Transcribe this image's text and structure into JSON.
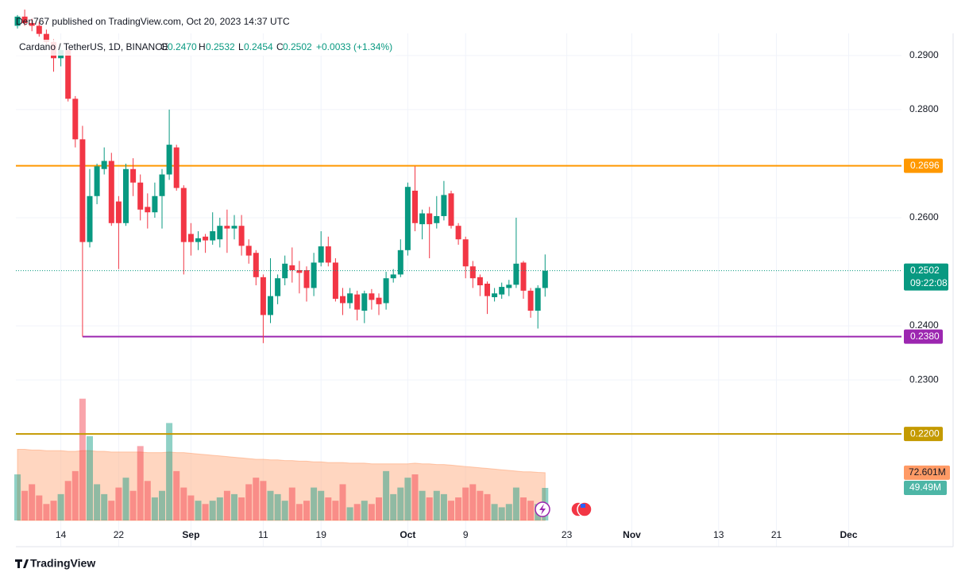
{
  "header": {
    "publisher": "Den767 published on TradingView.com, Oct 20, 2023 14:37 UTC",
    "symbol": "Cardano / TetherUS, 1D, BINANCE",
    "o_key": "O",
    "o": "0.2470",
    "h_key": "H",
    "h": "0.2532",
    "l_key": "L",
    "l": "0.2454",
    "c_key": "C",
    "c": "0.2502",
    "change": "+0.0033 (+1.34%)"
  },
  "footer": {
    "brand": "TradingView"
  },
  "chart_data": {
    "type": "candlestick",
    "x": [
      "2023-08-08",
      "2023-08-09",
      "2023-08-10",
      "2023-08-11",
      "2023-08-12",
      "2023-08-13",
      "2023-08-14",
      "2023-08-15",
      "2023-08-16",
      "2023-08-17",
      "2023-08-18",
      "2023-08-19",
      "2023-08-20",
      "2023-08-21",
      "2023-08-22",
      "2023-08-23",
      "2023-08-24",
      "2023-08-25",
      "2023-08-26",
      "2023-08-27",
      "2023-08-28",
      "2023-08-29",
      "2023-08-30",
      "2023-08-31",
      "2023-09-01",
      "2023-09-02",
      "2023-09-03",
      "2023-09-04",
      "2023-09-05",
      "2023-09-06",
      "2023-09-07",
      "2023-09-08",
      "2023-09-09",
      "2023-09-10",
      "2023-09-11",
      "2023-09-12",
      "2023-09-13",
      "2023-09-14",
      "2023-09-15",
      "2023-09-16",
      "2023-09-17",
      "2023-09-18",
      "2023-09-19",
      "2023-09-20",
      "2023-09-21",
      "2023-09-22",
      "2023-09-23",
      "2023-09-24",
      "2023-09-25",
      "2023-09-26",
      "2023-09-27",
      "2023-09-28",
      "2023-09-29",
      "2023-09-30",
      "2023-10-01",
      "2023-10-02",
      "2023-10-03",
      "2023-10-04",
      "2023-10-05",
      "2023-10-06",
      "2023-10-07",
      "2023-10-08",
      "2023-10-09",
      "2023-10-10",
      "2023-10-11",
      "2023-10-12",
      "2023-10-13",
      "2023-10-14",
      "2023-10-15",
      "2023-10-16",
      "2023-10-17",
      "2023-10-18",
      "2023-10-19",
      "2023-10-20"
    ],
    "open": [
      0.2955,
      0.2972,
      0.296,
      0.2955,
      0.294,
      0.2925,
      0.2895,
      0.291,
      0.282,
      0.2745,
      0.2555,
      0.264,
      0.269,
      0.2705,
      0.263,
      0.259,
      0.269,
      0.2665,
      0.262,
      0.261,
      0.264,
      0.268,
      0.273,
      0.2655,
      0.257,
      0.2555,
      0.2565,
      0.2558,
      0.256,
      0.2585,
      0.258,
      0.2585,
      0.2548,
      0.2535,
      0.249,
      0.242,
      0.2455,
      0.2488,
      0.2512,
      0.2503,
      0.2503,
      0.247,
      0.2517,
      0.2547,
      0.2517,
      0.2455,
      0.2442,
      0.2458,
      0.2428,
      0.246,
      0.2452,
      0.2442,
      0.2488,
      0.2495,
      0.254,
      0.265,
      0.2588,
      0.2608,
      0.259,
      0.2603,
      0.2645,
      0.2585,
      0.256,
      0.251,
      0.249,
      0.2478,
      0.2453,
      0.2458,
      0.247,
      0.2476,
      0.2517,
      0.2465,
      0.2428,
      0.247
    ],
    "high": [
      0.2975,
      0.2985,
      0.2968,
      0.2962,
      0.2948,
      0.293,
      0.2915,
      0.2915,
      0.2825,
      0.277,
      0.269,
      0.27,
      0.273,
      0.272,
      0.264,
      0.27,
      0.271,
      0.268,
      0.2645,
      0.2665,
      0.269,
      0.28,
      0.2735,
      0.266,
      0.259,
      0.2575,
      0.257,
      0.261,
      0.26,
      0.2615,
      0.2605,
      0.2605,
      0.256,
      0.254,
      0.2495,
      0.2525,
      0.2495,
      0.253,
      0.2545,
      0.252,
      0.251,
      0.2535,
      0.2575,
      0.2565,
      0.2525,
      0.247,
      0.247,
      0.2465,
      0.2465,
      0.2468,
      0.246,
      0.25,
      0.2505,
      0.256,
      0.2665,
      0.2695,
      0.2615,
      0.262,
      0.264,
      0.2668,
      0.265,
      0.259,
      0.2565,
      0.252,
      0.2495,
      0.2482,
      0.247,
      0.248,
      0.2485,
      0.26,
      0.252,
      0.247,
      0.2475,
      0.2532
    ],
    "low": [
      0.295,
      0.2955,
      0.2945,
      0.2935,
      0.292,
      0.287,
      0.288,
      0.2815,
      0.273,
      0.238,
      0.2545,
      0.2625,
      0.268,
      0.2585,
      0.2505,
      0.2585,
      0.264,
      0.2595,
      0.258,
      0.26,
      0.258,
      0.267,
      0.265,
      0.2495,
      0.253,
      0.254,
      0.2535,
      0.255,
      0.2545,
      0.2535,
      0.256,
      0.253,
      0.2515,
      0.2475,
      0.2368,
      0.2405,
      0.244,
      0.2475,
      0.248,
      0.246,
      0.2445,
      0.2455,
      0.251,
      0.251,
      0.2445,
      0.242,
      0.2432,
      0.241,
      0.2405,
      0.243,
      0.242,
      0.243,
      0.248,
      0.249,
      0.253,
      0.2575,
      0.256,
      0.2525,
      0.258,
      0.2595,
      0.258,
      0.255,
      0.2488,
      0.247,
      0.2455,
      0.2422,
      0.2445,
      0.245,
      0.2455,
      0.247,
      0.245,
      0.2415,
      0.2395,
      0.2454
    ],
    "close": [
      0.2972,
      0.296,
      0.2955,
      0.294,
      0.2925,
      0.2895,
      0.291,
      0.282,
      0.2745,
      0.2555,
      0.264,
      0.2695,
      0.2705,
      0.259,
      0.259,
      0.269,
      0.2665,
      0.2615,
      0.261,
      0.264,
      0.268,
      0.2735,
      0.2655,
      0.2555,
      0.2555,
      0.2562,
      0.2558,
      0.2575,
      0.2585,
      0.258,
      0.2585,
      0.2548,
      0.253,
      0.249,
      0.242,
      0.2455,
      0.2488,
      0.2515,
      0.2503,
      0.2498,
      0.247,
      0.2517,
      0.2547,
      0.2517,
      0.245,
      0.2442,
      0.246,
      0.243,
      0.246,
      0.2448,
      0.244,
      0.2488,
      0.2495,
      0.254,
      0.2657,
      0.259,
      0.2608,
      0.2588,
      0.2603,
      0.2642,
      0.2585,
      0.256,
      0.251,
      0.2488,
      0.2475,
      0.2455,
      0.246,
      0.2472,
      0.2476,
      0.2515,
      0.2465,
      0.2428,
      0.247,
      0.2502
    ],
    "volume": [
      70000000,
      45000000,
      55000000,
      38000000,
      25000000,
      30000000,
      40000000,
      60000000,
      75000000,
      185000000,
      128000000,
      55000000,
      40000000,
      30000000,
      50000000,
      65000000,
      45000000,
      113000000,
      60000000,
      35000000,
      45000000,
      148000000,
      75000000,
      50000000,
      38000000,
      30000000,
      25000000,
      30000000,
      35000000,
      45000000,
      40000000,
      35000000,
      55000000,
      65000000,
      60000000,
      45000000,
      40000000,
      30000000,
      50000000,
      25000000,
      30000000,
      50000000,
      45000000,
      35000000,
      30000000,
      55000000,
      20000000,
      25000000,
      30000000,
      25000000,
      35000000,
      75000000,
      40000000,
      50000000,
      65000000,
      70000000,
      45000000,
      35000000,
      45000000,
      40000000,
      30000000,
      35000000,
      50000000,
      55000000,
      45000000,
      40000000,
      25000000,
      20000000,
      25000000,
      50000000,
      35000000,
      30000000,
      25000000,
      49490000
    ],
    "volume_ma": [
      108000000,
      108000000,
      107000000,
      107000000,
      106000000,
      106000000,
      106000000,
      105000000,
      105000000,
      106000000,
      106000000,
      105000000,
      105000000,
      104000000,
      104000000,
      104000000,
      104000000,
      104000000,
      103000000,
      103000000,
      103000000,
      104000000,
      103000000,
      103000000,
      102000000,
      101000000,
      100000000,
      99000000,
      98000000,
      97000000,
      96000000,
      95000000,
      94000000,
      93000000,
      93000000,
      92000000,
      92000000,
      91000000,
      91000000,
      90000000,
      90000000,
      89000000,
      89000000,
      88000000,
      88000000,
      88000000,
      87000000,
      87000000,
      87000000,
      86000000,
      86000000,
      86000000,
      86000000,
      86000000,
      86000000,
      87000000,
      86000000,
      86000000,
      85000000,
      85000000,
      84000000,
      83000000,
      82000000,
      81000000,
      80000000,
      79000000,
      78000000,
      77000000,
      76000000,
      75000000,
      74000000,
      74000000,
      73000000,
      72601000
    ],
    "volume_label": "49.49M",
    "volume_ma_label": "72.601M",
    "countdown": "09:22:08",
    "up_color": "#089981",
    "down_color": "#f23645",
    "xlim": [
      "2023-08-08",
      "2023-12-08"
    ],
    "xticks": [
      {
        "value": "2023-08-14",
        "label": "14"
      },
      {
        "value": "2023-08-22",
        "label": "22"
      },
      {
        "value": "2023-09-01",
        "label": "Sep"
      },
      {
        "value": "2023-09-11",
        "label": "11"
      },
      {
        "value": "2023-09-19",
        "label": "19"
      },
      {
        "value": "2023-10-01",
        "label": "Oct"
      },
      {
        "value": "2023-10-09",
        "label": "9"
      },
      {
        "value": "2023-10-23",
        "label": "23"
      },
      {
        "value": "2023-11-01",
        "label": "Nov"
      },
      {
        "value": "2023-11-13",
        "label": "13"
      },
      {
        "value": "2023-11-21",
        "label": "21"
      },
      {
        "value": "2023-12-01",
        "label": "Dec"
      }
    ],
    "ylim": [
      0.204,
      0.2988
    ],
    "yticks": [
      {
        "value": 0.29,
        "label": "0.2900"
      },
      {
        "value": 0.28,
        "label": "0.2800"
      },
      {
        "value": 0.26,
        "label": "0.2600"
      },
      {
        "value": 0.24,
        "label": "0.2400"
      },
      {
        "value": 0.23,
        "label": "0.2300"
      }
    ],
    "grid": true,
    "hlines": [
      {
        "value": 0.2696,
        "color": "#ff9800"
      },
      {
        "value": 0.238,
        "label": "0.2380",
        "color": "#9c27b0",
        "start": "2023-08-17"
      },
      {
        "value": 0.22,
        "label": "0.2200",
        "color": "#c49a00"
      }
    ]
  }
}
